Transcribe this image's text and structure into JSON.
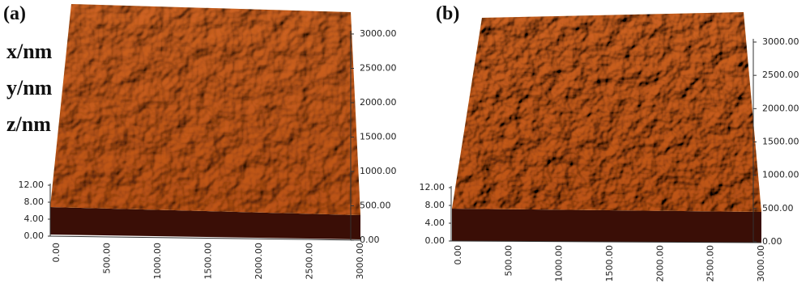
{
  "axis_labels": [
    "x/nm",
    "y/nm",
    "z/nm"
  ],
  "panels": [
    {
      "label": "(a)",
      "z_ticks": [
        "0.00",
        "4.00",
        "8.00",
        "12.00"
      ],
      "x_ticks": [
        "0.00",
        "500.00",
        "1000.00",
        "1500.00",
        "2000.00",
        "2500.00",
        "3000.00"
      ],
      "y_ticks": [
        "0.00",
        "500.00",
        "1000.00",
        "1500.00",
        "2000.00",
        "2500.00",
        "3000.00"
      ]
    },
    {
      "label": "(b)",
      "z_ticks": [
        "0.00",
        "4.00",
        "8.00",
        "12.00"
      ],
      "x_ticks": [
        "0.00",
        "500.00",
        "1000.00",
        "1500.00",
        "2000.00",
        "2500.00",
        "3000.00"
      ],
      "y_ticks": [
        "0.00",
        "500.00",
        "1000.00",
        "1500.00",
        "2000.00",
        "2500.00",
        "3000.00"
      ]
    }
  ]
}
